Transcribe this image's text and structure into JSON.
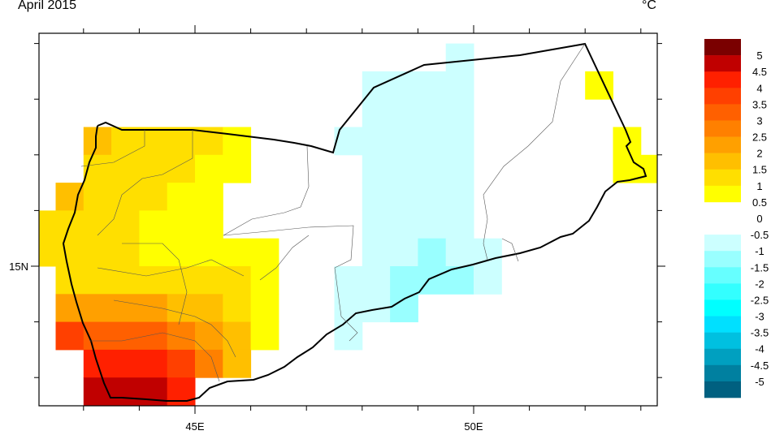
{
  "title": "April 2015",
  "unit": "°C",
  "map": {
    "lon_range": [
      42.2,
      53.3
    ],
    "lat_range": [
      12.48,
      19.17
    ],
    "cell_size_deg": 0.5,
    "lon_labels": [
      {
        "lon": 45,
        "label": "45E"
      },
      {
        "lon": 50,
        "label": "50E"
      }
    ],
    "lat_labels": [
      {
        "lat": 15,
        "label": "15N"
      }
    ],
    "cells": [
      {
        "lat_top": 19.0,
        "spans": [
          [
            49.5,
            50.0,
            -0.75
          ]
        ]
      },
      {
        "lat_top": 18.5,
        "spans": [
          [
            48.0,
            50.0,
            -0.75
          ],
          [
            52.0,
            52.5,
            0.75
          ]
        ]
      },
      {
        "lat_top": 18.0,
        "spans": [
          [
            48.0,
            50.0,
            -0.75
          ]
        ]
      },
      {
        "lat_top": 17.5,
        "spans": [
          [
            43.0,
            43.5,
            1.75
          ],
          [
            43.5,
            45.5,
            1.25
          ],
          [
            45.5,
            46.0,
            0.75
          ],
          [
            47.5,
            50.0,
            -0.75
          ],
          [
            52.5,
            53.0,
            0.75
          ]
        ]
      },
      {
        "lat_top": 17.0,
        "spans": [
          [
            43.0,
            45.0,
            1.25
          ],
          [
            45.0,
            46.0,
            0.75
          ],
          [
            48.0,
            50.0,
            -0.75
          ],
          [
            52.5,
            53.5,
            0.75
          ]
        ]
      },
      {
        "lat_top": 16.5,
        "spans": [
          [
            42.5,
            43.0,
            1.75
          ],
          [
            43.0,
            44.5,
            1.25
          ],
          [
            44.5,
            45.5,
            0.75
          ],
          [
            48.0,
            50.0,
            -0.75
          ]
        ]
      },
      {
        "lat_top": 16.0,
        "spans": [
          [
            42.0,
            44.0,
            1.25
          ],
          [
            44.0,
            45.5,
            0.75
          ],
          [
            48.0,
            50.0,
            -0.75
          ]
        ]
      },
      {
        "lat_top": 15.5,
        "spans": [
          [
            42.0,
            44.0,
            1.25
          ],
          [
            44.0,
            46.5,
            0.75
          ],
          [
            48.0,
            49.0,
            -0.75
          ],
          [
            49.0,
            49.5,
            -1.25
          ],
          [
            49.5,
            50.5,
            -0.75
          ]
        ]
      },
      {
        "lat_top": 15.0,
        "spans": [
          [
            42.5,
            46.0,
            1.25
          ],
          [
            46.0,
            46.5,
            0.75
          ],
          [
            47.5,
            48.5,
            -0.75
          ],
          [
            48.5,
            50.0,
            -1.25
          ],
          [
            50.0,
            50.5,
            -0.75
          ]
        ]
      },
      {
        "lat_top": 14.5,
        "spans": [
          [
            42.5,
            44.5,
            2.25
          ],
          [
            44.5,
            45.5,
            1.75
          ],
          [
            45.5,
            46.0,
            1.25
          ],
          [
            46.0,
            46.5,
            0.75
          ],
          [
            47.5,
            48.5,
            -0.75
          ],
          [
            48.5,
            49.0,
            -1.25
          ]
        ]
      },
      {
        "lat_top": 14.0,
        "spans": [
          [
            42.5,
            43.0,
            3.75
          ],
          [
            43.0,
            44.5,
            3.25
          ],
          [
            44.5,
            45.0,
            2.75
          ],
          [
            45.0,
            45.5,
            2.25
          ],
          [
            45.5,
            46.0,
            1.75
          ],
          [
            46.0,
            46.5,
            0.75
          ],
          [
            47.5,
            48.0,
            -0.75
          ]
        ]
      },
      {
        "lat_top": 13.5,
        "spans": [
          [
            43.0,
            44.5,
            4.25
          ],
          [
            44.5,
            45.0,
            3.75
          ],
          [
            45.0,
            45.5,
            2.75
          ],
          [
            45.5,
            46.0,
            1.75
          ]
        ]
      },
      {
        "lat_top": 13.0,
        "spans": [
          [
            43.0,
            44.5,
            4.75
          ],
          [
            44.5,
            45.0,
            4.25
          ]
        ]
      }
    ]
  },
  "colorbar": {
    "labels": [
      "5",
      "4.5",
      "4",
      "3.5",
      "3",
      "2.5",
      "2",
      "1.5",
      "1",
      "0.5",
      "0",
      "-0.5",
      "-1",
      "-1.5",
      "-2",
      "-2.5",
      "-3",
      "-3.5",
      "-4",
      "-4.5",
      "-5"
    ],
    "colors": [
      "#7a0000",
      "#c00000",
      "#ff2000",
      "#ff4000",
      "#ff6000",
      "#ff8000",
      "#ffa000",
      "#ffbf00",
      "#ffdf00",
      "#ffff00",
      "#ffffff",
      "#ffffff",
      "#ccffff",
      "#99ffff",
      "#66ffff",
      "#33ffff",
      "#00ffff",
      "#00e0ff",
      "#00c0e0",
      "#00a0c0",
      "#0080a0",
      "#006080"
    ]
  }
}
